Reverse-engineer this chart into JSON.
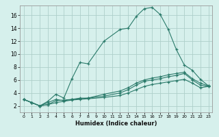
{
  "xlabel": "Humidex (Indice chaleur)",
  "background_color": "#d6f0ec",
  "grid_color": "#aecfca",
  "line_color": "#2a7a6a",
  "xlim": [
    -0.5,
    23.5
  ],
  "ylim": [
    1.0,
    17.5
  ],
  "yticks": [
    2,
    4,
    6,
    8,
    10,
    12,
    14,
    16
  ],
  "xticks": [
    0,
    1,
    2,
    3,
    4,
    5,
    6,
    7,
    8,
    9,
    10,
    11,
    12,
    13,
    14,
    15,
    16,
    17,
    18,
    19,
    20,
    21,
    22,
    23
  ],
  "series": [
    {
      "x": [
        0,
        1,
        2,
        3,
        4,
        5,
        6,
        7,
        8,
        10,
        12,
        13,
        14,
        15,
        16,
        17,
        18,
        19,
        20,
        21,
        22,
        23
      ],
      "y": [
        3.0,
        2.5,
        2.0,
        2.7,
        3.8,
        3.2,
        6.2,
        8.7,
        8.5,
        12.0,
        13.8,
        14.0,
        15.8,
        17.0,
        17.2,
        16.1,
        13.8,
        10.7,
        8.3,
        7.5,
        6.1,
        5.1
      ]
    },
    {
      "x": [
        0,
        1,
        2,
        3,
        4,
        5,
        6,
        7,
        8,
        10,
        12,
        13,
        14,
        15,
        16,
        17,
        18,
        19,
        20,
        21,
        22,
        23
      ],
      "y": [
        3.0,
        2.5,
        2.0,
        2.5,
        3.0,
        2.8,
        3.0,
        3.2,
        3.2,
        3.8,
        4.3,
        4.8,
        5.5,
        6.0,
        6.3,
        6.5,
        6.8,
        7.0,
        7.2,
        6.2,
        5.5,
        5.1
      ]
    },
    {
      "x": [
        0,
        1,
        2,
        3,
        4,
        5,
        6,
        7,
        8,
        10,
        12,
        13,
        14,
        15,
        16,
        17,
        18,
        19,
        20,
        21,
        22,
        23
      ],
      "y": [
        3.0,
        2.5,
        2.0,
        2.2,
        2.8,
        2.9,
        3.0,
        3.1,
        3.2,
        3.5,
        4.0,
        4.5,
        5.2,
        5.8,
        6.0,
        6.2,
        6.5,
        6.7,
        7.0,
        6.0,
        5.2,
        5.0
      ]
    },
    {
      "x": [
        0,
        1,
        2,
        3,
        4,
        5,
        6,
        7,
        8,
        10,
        12,
        13,
        14,
        15,
        16,
        17,
        18,
        19,
        20,
        21,
        22,
        23
      ],
      "y": [
        3.0,
        2.5,
        2.0,
        2.2,
        2.5,
        2.7,
        2.9,
        3.0,
        3.1,
        3.3,
        3.6,
        4.0,
        4.5,
        5.0,
        5.3,
        5.5,
        5.7,
        5.9,
        6.1,
        5.5,
        4.8,
        5.0
      ]
    }
  ]
}
